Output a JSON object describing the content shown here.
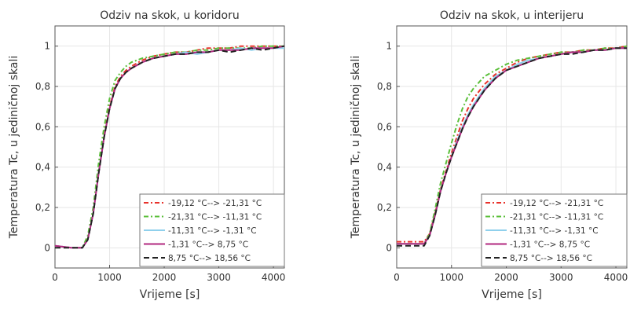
{
  "chart_data": [
    {
      "type": "line",
      "title": "Odziv na skok, u koridoru",
      "xlabel": "Vrijeme [s]",
      "ylabel": "Temperatura Tc, u jediničnoj skali",
      "xlim": [
        0,
        4200
      ],
      "ylim": [
        -0.1,
        1.1
      ],
      "xticks": [
        0,
        1000,
        2000,
        3000,
        4000
      ],
      "xtick_labels": [
        "0",
        "1000",
        "2000",
        "3000",
        "4000"
      ],
      "yticks": [
        0,
        0.2,
        0.4,
        0.6,
        0.8,
        1
      ],
      "ytick_labels": [
        "0",
        "0,2",
        "0,4",
        "0,6",
        "0,8",
        "1"
      ],
      "grid": true,
      "legend_position": "bottom-right",
      "series": [
        {
          "name": "-19,12 °C--> -21,31 °C",
          "color": "#e8322b",
          "dash": "6,3,2,3",
          "x": [
            0,
            300,
            500,
            600,
            700,
            800,
            900,
            1000,
            1100,
            1200,
            1300,
            1400,
            1600,
            1800,
            2000,
            2200,
            2400,
            2600,
            2800,
            3000,
            3200,
            3400,
            3600,
            3800,
            4000,
            4200
          ],
          "y": [
            0.01,
            0.0,
            0.0,
            0.05,
            0.18,
            0.38,
            0.56,
            0.7,
            0.8,
            0.85,
            0.88,
            0.9,
            0.93,
            0.95,
            0.96,
            0.97,
            0.97,
            0.98,
            0.99,
            0.99,
            0.99,
            1.0,
            1.0,
            1.0,
            1.0,
            1.0
          ]
        },
        {
          "name": "-21,31 °C--> -11,31 °C",
          "color": "#5bbf3a",
          "dash": "6,3,2,3",
          "x": [
            0,
            300,
            500,
            600,
            700,
            800,
            900,
            1000,
            1100,
            1200,
            1300,
            1400,
            1600,
            1800,
            2000,
            2200,
            2400,
            2600,
            2800,
            3000,
            3200,
            3400,
            3600,
            3800,
            4000,
            4200
          ],
          "y": [
            0.01,
            0.0,
            0.0,
            0.06,
            0.2,
            0.42,
            0.6,
            0.74,
            0.83,
            0.87,
            0.9,
            0.92,
            0.94,
            0.95,
            0.96,
            0.97,
            0.97,
            0.98,
            0.98,
            0.99,
            0.99,
            0.99,
            0.99,
            1.0,
            1.0,
            1.0
          ]
        },
        {
          "name": "-11,31 °C--> -1,31 °C",
          "color": "#8fd0ec",
          "dash": "",
          "x": [
            0,
            300,
            500,
            600,
            700,
            800,
            900,
            1000,
            1100,
            1200,
            1300,
            1400,
            1600,
            1800,
            2000,
            2200,
            2400,
            2600,
            2800,
            3000,
            3200,
            3400,
            3600,
            3800,
            4000,
            4200
          ],
          "y": [
            0.01,
            0.0,
            0.0,
            0.04,
            0.17,
            0.37,
            0.55,
            0.69,
            0.79,
            0.84,
            0.87,
            0.89,
            0.92,
            0.94,
            0.95,
            0.96,
            0.97,
            0.96,
            0.97,
            0.98,
            0.98,
            0.99,
            0.98,
            0.99,
            0.99,
            0.99
          ]
        },
        {
          "name": "-1,31 °C--> 8,75 °C",
          "color": "#b2287f",
          "dash": "",
          "x": [
            0,
            300,
            500,
            600,
            700,
            800,
            900,
            1000,
            1100,
            1200,
            1300,
            1400,
            1600,
            1800,
            2000,
            2200,
            2400,
            2600,
            2800,
            3000,
            3200,
            3400,
            3600,
            3800,
            4000,
            4200
          ],
          "y": [
            0.01,
            0.0,
            0.0,
            0.04,
            0.17,
            0.37,
            0.55,
            0.69,
            0.79,
            0.84,
            0.87,
            0.89,
            0.92,
            0.94,
            0.95,
            0.96,
            0.96,
            0.97,
            0.97,
            0.98,
            0.98,
            0.98,
            0.99,
            0.99,
            0.99,
            1.0
          ]
        },
        {
          "name": "8,75 °C--> 18,56 °C",
          "color": "#222222",
          "dash": "7,4",
          "x": [
            0,
            300,
            500,
            600,
            700,
            800,
            900,
            1000,
            1100,
            1200,
            1300,
            1400,
            1600,
            1800,
            2000,
            2200,
            2400,
            2600,
            2800,
            3000,
            3200,
            3400,
            3600,
            3800,
            4000,
            4200
          ],
          "y": [
            0.0,
            0.0,
            0.0,
            0.04,
            0.17,
            0.37,
            0.55,
            0.69,
            0.79,
            0.84,
            0.87,
            0.89,
            0.92,
            0.94,
            0.95,
            0.96,
            0.96,
            0.97,
            0.97,
            0.98,
            0.97,
            0.98,
            0.99,
            0.98,
            0.99,
            1.0
          ]
        }
      ]
    },
    {
      "type": "line",
      "title": "Odziv na skok, u interijeru",
      "xlabel": "Vrijeme [s]",
      "ylabel": "Temperatura Tc, u jediničnoj skali",
      "xlim": [
        0,
        4200
      ],
      "ylim": [
        -0.1,
        1.1
      ],
      "xticks": [
        0,
        1000,
        2000,
        3000,
        4000
      ],
      "xtick_labels": [
        "0",
        "1000",
        "2000",
        "3000",
        "4000"
      ],
      "yticks": [
        0,
        0.2,
        0.4,
        0.6,
        0.8,
        1
      ],
      "ytick_labels": [
        "0",
        "0,2",
        "0,4",
        "0,6",
        "0,8",
        "1"
      ],
      "grid": true,
      "legend_position": "bottom-right",
      "series": [
        {
          "name": "-19,12 °C--> -21,31 °C",
          "color": "#e8322b",
          "dash": "6,3,2,3",
          "x": [
            0,
            300,
            500,
            600,
            700,
            800,
            900,
            1000,
            1100,
            1200,
            1300,
            1400,
            1600,
            1800,
            2000,
            2200,
            2400,
            2600,
            2800,
            3000,
            3200,
            3400,
            3600,
            3800,
            4000,
            4200
          ],
          "y": [
            0.03,
            0.03,
            0.03,
            0.07,
            0.17,
            0.29,
            0.38,
            0.47,
            0.55,
            0.63,
            0.69,
            0.74,
            0.81,
            0.86,
            0.89,
            0.92,
            0.94,
            0.95,
            0.96,
            0.97,
            0.97,
            0.98,
            0.98,
            0.99,
            0.99,
            1.0
          ]
        },
        {
          "name": "-21,31 °C--> -11,31 °C",
          "color": "#5bbf3a",
          "dash": "6,3,2,3",
          "x": [
            0,
            300,
            500,
            600,
            700,
            800,
            900,
            1000,
            1100,
            1200,
            1300,
            1400,
            1600,
            1800,
            2000,
            2200,
            2400,
            2600,
            2800,
            3000,
            3200,
            3400,
            3600,
            3800,
            4000,
            4200
          ],
          "y": [
            0.02,
            0.02,
            0.02,
            0.07,
            0.19,
            0.32,
            0.42,
            0.52,
            0.61,
            0.69,
            0.75,
            0.79,
            0.85,
            0.88,
            0.91,
            0.93,
            0.94,
            0.95,
            0.96,
            0.97,
            0.97,
            0.98,
            0.98,
            0.99,
            0.99,
            1.0
          ]
        },
        {
          "name": "-11,31 °C--> -1,31 °C",
          "color": "#8fd0ec",
          "dash": "",
          "x": [
            0,
            300,
            500,
            600,
            700,
            800,
            900,
            1000,
            1100,
            1200,
            1300,
            1400,
            1600,
            1800,
            2000,
            2200,
            2400,
            2600,
            2800,
            3000,
            3200,
            3400,
            3600,
            3800,
            4000,
            4200
          ],
          "y": [
            0.02,
            0.02,
            0.02,
            0.06,
            0.16,
            0.28,
            0.37,
            0.45,
            0.53,
            0.6,
            0.66,
            0.71,
            0.79,
            0.85,
            0.88,
            0.91,
            0.93,
            0.94,
            0.95,
            0.96,
            0.97,
            0.97,
            0.98,
            0.98,
            0.99,
            0.99
          ]
        },
        {
          "name": "-1,31 °C--> 8,75 °C",
          "color": "#b2287f",
          "dash": "",
          "x": [
            0,
            300,
            500,
            600,
            700,
            800,
            900,
            1000,
            1100,
            1200,
            1300,
            1400,
            1600,
            1800,
            2000,
            2200,
            2400,
            2600,
            2800,
            3000,
            3200,
            3400,
            3600,
            3800,
            4000,
            4200
          ],
          "y": [
            0.02,
            0.02,
            0.02,
            0.06,
            0.16,
            0.28,
            0.37,
            0.45,
            0.52,
            0.59,
            0.65,
            0.7,
            0.78,
            0.84,
            0.88,
            0.9,
            0.92,
            0.94,
            0.95,
            0.96,
            0.97,
            0.97,
            0.98,
            0.98,
            0.99,
            0.99
          ]
        },
        {
          "name": "8,75 °C--> 18,56 °C",
          "color": "#222222",
          "dash": "7,4",
          "x": [
            0,
            300,
            500,
            600,
            700,
            800,
            900,
            1000,
            1100,
            1200,
            1300,
            1400,
            1600,
            1800,
            2000,
            2200,
            2400,
            2600,
            2800,
            3000,
            3200,
            3400,
            3600,
            3800,
            4000,
            4200
          ],
          "y": [
            0.01,
            0.01,
            0.01,
            0.06,
            0.16,
            0.28,
            0.37,
            0.45,
            0.52,
            0.59,
            0.65,
            0.7,
            0.78,
            0.84,
            0.88,
            0.9,
            0.92,
            0.94,
            0.95,
            0.96,
            0.96,
            0.97,
            0.98,
            0.98,
            0.99,
            0.99
          ]
        }
      ]
    }
  ]
}
